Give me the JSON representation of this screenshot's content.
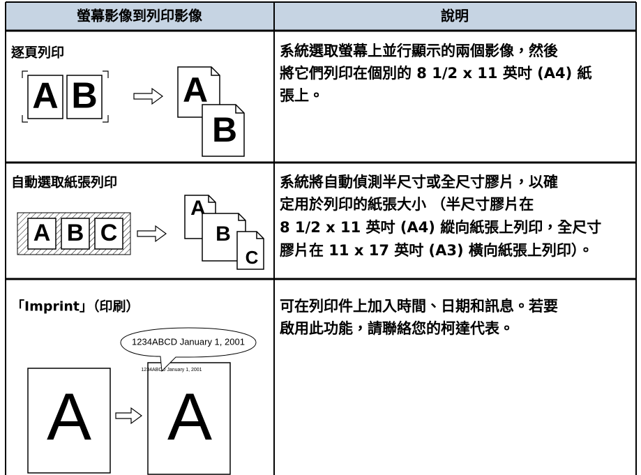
{
  "table": {
    "header": [
      "螢幕影像到列印影像",
      "說明"
    ],
    "rows": [
      {
        "title": "逐頁列印",
        "illustration": {
          "source": [
            "A",
            "B"
          ],
          "output": [
            "A",
            "B"
          ]
        },
        "description": [
          "系統選取螢幕上並行顯示的兩個影像，然後",
          "將它們列印在個別的 8 1/2 x 11 英吋 (A4) 紙",
          "張上。"
        ]
      },
      {
        "title": "自動選取紙張列印",
        "illustration": {
          "source": [
            "A",
            "B",
            "C"
          ],
          "output": [
            "A",
            "B",
            "C"
          ]
        },
        "description": [
          "系統將自動偵測半尺寸或全尺寸膠片，以確",
          "定用於列印的紙張大小 （半尺寸膠片在",
          "8 1/2 x 11 英吋 (A4) 縱向紙張上列印，全尺寸",
          "膠片在 11 x 17 英吋 (A3) 橫向紙張上列印）。"
        ]
      },
      {
        "title": "「Imprint」（印刷）",
        "illustration": {
          "source": [
            "A"
          ],
          "output": [
            "A"
          ],
          "callout": "1234ABCD January 1, 2001",
          "imprint": "1234ABCD January 1, 2001"
        },
        "description": [
          "可在列印件上加入時間、日期和訊息。若要",
          "啟用此功能，請聯絡您的柯達代表。"
        ]
      }
    ]
  }
}
